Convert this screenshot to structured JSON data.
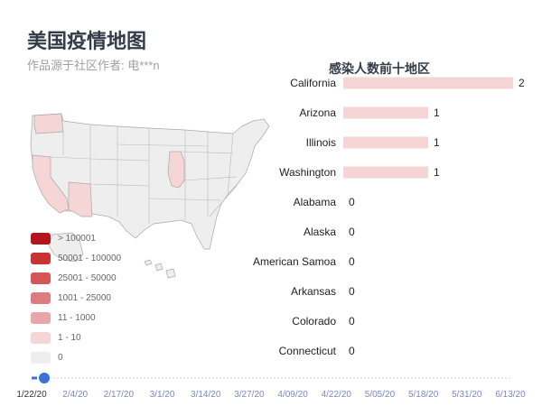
{
  "header": {
    "title": "美国疫情地图",
    "subtitle": "作品源于社区作者: 电***n"
  },
  "legend": {
    "items": [
      {
        "label": "> 100001",
        "color": "#b5151a"
      },
      {
        "label": "50001 - 100000",
        "color": "#c93133"
      },
      {
        "label": "25001 - 50000",
        "color": "#d65557"
      },
      {
        "label": "1001 - 25000",
        "color": "#de7b7e"
      },
      {
        "label": "11 - 1000",
        "color": "#e8a6a8"
      },
      {
        "label": "1 - 10",
        "color": "#f5d5d6"
      },
      {
        "label": "0",
        "color": "#eeeeee"
      }
    ]
  },
  "chart_data": {
    "type": "bar",
    "title": "感染人数前十地区",
    "orientation": "horizontal",
    "categories": [
      "California",
      "Arizona",
      "Illinois",
      "Washington",
      "Alabama",
      "Alaska",
      "American Samoa",
      "Arkansas",
      "Colorado",
      "Connecticut"
    ],
    "values": [
      2,
      1,
      1,
      1,
      0,
      0,
      0,
      0,
      0,
      0
    ],
    "xlim": [
      0,
      2
    ],
    "bar_color": "#f5d5d6",
    "grid": false
  },
  "map": {
    "highlighted_states": [
      "Washington",
      "California",
      "Arizona",
      "Illinois"
    ],
    "highlight_color": "#f5d5d6",
    "base_color": "#eeeeee"
  },
  "timeline": {
    "labels": [
      "1/22/20",
      "2/4/20",
      "2/17/20",
      "3/1/20",
      "3/14/20",
      "3/27/20",
      "4/09/20",
      "4/22/20",
      "5/05/20",
      "5/18/20",
      "5/31/20",
      "6/13/20"
    ],
    "current": "1/22/20",
    "current_index": 0,
    "accent_color": "#3a72d8"
  }
}
